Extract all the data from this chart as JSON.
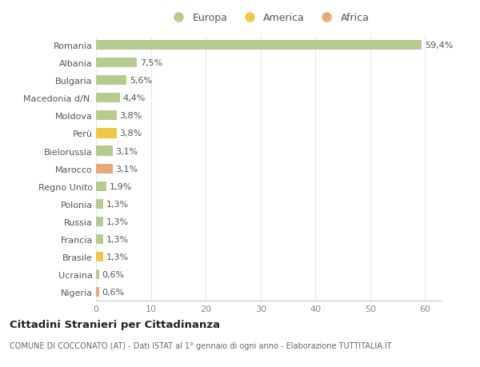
{
  "countries": [
    "Romania",
    "Albania",
    "Bulgaria",
    "Macedonia d/N.",
    "Moldova",
    "Perù",
    "Bielorussia",
    "Marocco",
    "Regno Unito",
    "Polonia",
    "Russia",
    "Francia",
    "Brasile",
    "Ucraina",
    "Nigeria"
  ],
  "values": [
    59.4,
    7.5,
    5.6,
    4.4,
    3.8,
    3.8,
    3.1,
    3.1,
    1.9,
    1.3,
    1.3,
    1.3,
    1.3,
    0.6,
    0.6
  ],
  "labels": [
    "59,4%",
    "7,5%",
    "5,6%",
    "4,4%",
    "3,8%",
    "3,8%",
    "3,1%",
    "3,1%",
    "1,9%",
    "1,3%",
    "1,3%",
    "1,3%",
    "1,3%",
    "0,6%",
    "0,6%"
  ],
  "continents": [
    "Europa",
    "Europa",
    "Europa",
    "Europa",
    "Europa",
    "America",
    "Europa",
    "Africa",
    "Europa",
    "Europa",
    "Europa",
    "Europa",
    "America",
    "Europa",
    "Africa"
  ],
  "colors": {
    "Europa": "#b5cc8e",
    "America": "#f0c840",
    "Africa": "#e8a878"
  },
  "legend_colors": {
    "Europa": "#b5cc8e",
    "America": "#f0c840",
    "Africa": "#e8a878"
  },
  "xlim": [
    0,
    63
  ],
  "xticks": [
    0,
    10,
    20,
    30,
    40,
    50,
    60
  ],
  "background_color": "#ffffff",
  "plot_bg_color": "#ffffff",
  "grid_color": "#e8e8e8",
  "title_main": "Cittadini Stranieri per Cittadinanza",
  "title_sub": "COMUNE DI COCCONATO (AT) - Dati ISTAT al 1° gennaio di ogni anno - Elaborazione TUTTITALIA.IT",
  "bar_height": 0.55,
  "label_fontsize": 8,
  "tick_fontsize": 8,
  "legend_fontsize": 9
}
